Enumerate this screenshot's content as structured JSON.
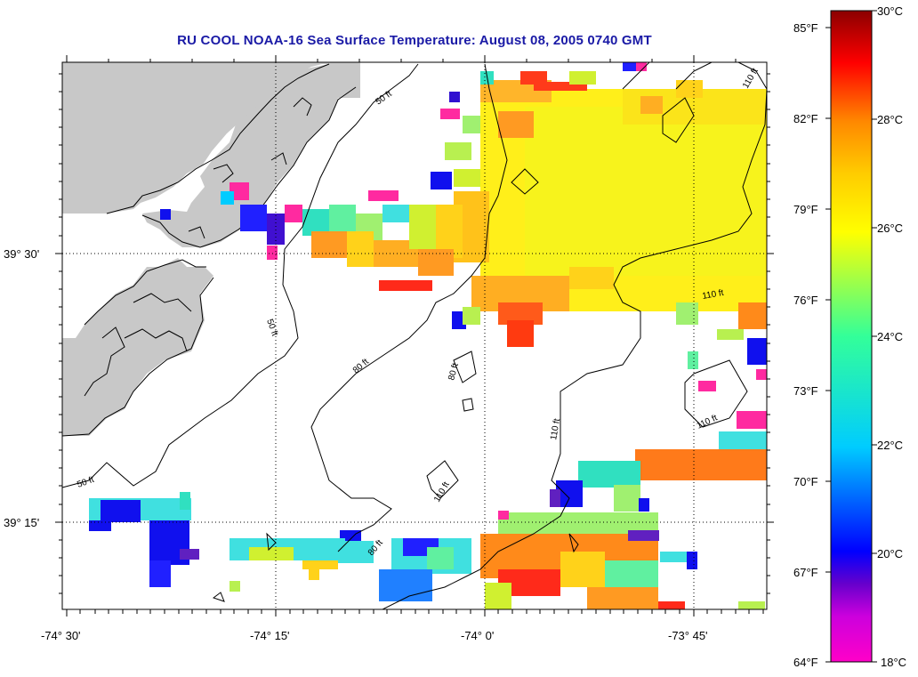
{
  "title": "RU COOL  NOAA-16  Sea Surface Temperature:  August 08, 2005 0740 GMT",
  "map": {
    "lat_labels": [
      "39° 30'",
      "39° 15'"
    ],
    "lon_labels": [
      "-74° 30'",
      "-74° 15'",
      "-74° 0'",
      "-73° 45'"
    ],
    "contour_labels": [
      "50 ft",
      "80 ft",
      "110 ft"
    ],
    "colors": {
      "land": "#c8c8c8",
      "no_data": "#ffffff",
      "contour": "#000000",
      "title": "#1a1aa6"
    }
  },
  "colorbar": {
    "fahrenheit_labels": [
      "85°F",
      "82°F",
      "79°F",
      "76°F",
      "73°F",
      "70°F",
      "67°F",
      "64°F"
    ],
    "celsius_labels": [
      "30°C",
      "28°C",
      "26°C",
      "24°C",
      "22°C",
      "20°C",
      "18°C"
    ],
    "range_c": [
      18,
      30
    ],
    "stops": [
      "#ff00c8",
      "#6600cc",
      "#0000ff",
      "#00ccff",
      "#33ff99",
      "#ffff00",
      "#ff8800",
      "#ff0000",
      "#8b0000"
    ]
  }
}
